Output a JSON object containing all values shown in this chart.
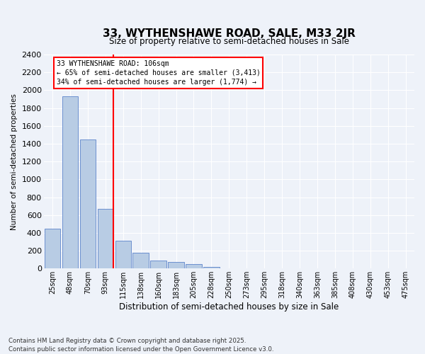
{
  "title": "33, WYTHENSHAWE ROAD, SALE, M33 2JR",
  "subtitle": "Size of property relative to semi-detached houses in Sale",
  "xlabel": "Distribution of semi-detached houses by size in Sale",
  "ylabel": "Number of semi-detached properties",
  "bin_labels": [
    "25sqm",
    "48sqm",
    "70sqm",
    "93sqm",
    "115sqm",
    "138sqm",
    "160sqm",
    "183sqm",
    "205sqm",
    "228sqm",
    "250sqm",
    "273sqm",
    "295sqm",
    "318sqm",
    "340sqm",
    "363sqm",
    "385sqm",
    "408sqm",
    "430sqm",
    "453sqm",
    "475sqm"
  ],
  "bin_values": [
    450,
    1930,
    1450,
    670,
    310,
    180,
    90,
    70,
    50,
    15,
    5,
    3,
    2,
    1,
    1,
    1,
    1,
    0,
    0,
    0,
    0
  ],
  "bar_color": "#b8cce4",
  "bar_edge_color": "#4472c4",
  "property_sqm": 106,
  "pct_smaller": 65,
  "n_smaller": "3,413",
  "pct_larger": 34,
  "n_larger": "1,774",
  "annotation_label": "33 WYTHENSHAWE ROAD: 106sqm",
  "annotation_line1": "← 65% of semi-detached houses are smaller (3,413)",
  "annotation_line2": "34% of semi-detached houses are larger (1,774) →",
  "ylim": [
    0,
    2400
  ],
  "yticks": [
    0,
    200,
    400,
    600,
    800,
    1000,
    1200,
    1400,
    1600,
    1800,
    2000,
    2200,
    2400
  ],
  "bg_color": "#eef2f9",
  "grid_color": "#ffffff",
  "footer_line1": "Contains HM Land Registry data © Crown copyright and database right 2025.",
  "footer_line2": "Contains public sector information licensed under the Open Government Licence v3.0."
}
